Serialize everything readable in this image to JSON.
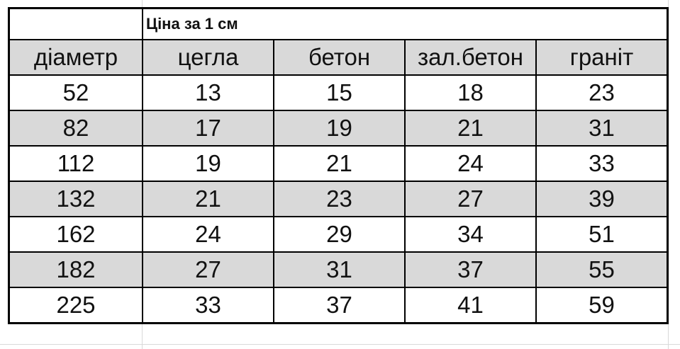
{
  "title": "Ціна за 1 см",
  "columns": [
    "діаметр",
    "цегла",
    "бетон",
    "зал.бетон",
    "граніт"
  ],
  "rows": [
    [
      "52",
      "13",
      "15",
      "18",
      "23"
    ],
    [
      "82",
      "17",
      "19",
      "21",
      "31"
    ],
    [
      "112",
      "19",
      "21",
      "24",
      "33"
    ],
    [
      "132",
      "21",
      "23",
      "27",
      "39"
    ],
    [
      "162",
      "24",
      "29",
      "34",
      "51"
    ],
    [
      "182",
      "27",
      "31",
      "37",
      "55"
    ],
    [
      "225",
      "33",
      "37",
      "41",
      "59"
    ]
  ],
  "colors": {
    "stripe": "#d9d9d9",
    "border": "#000000"
  }
}
